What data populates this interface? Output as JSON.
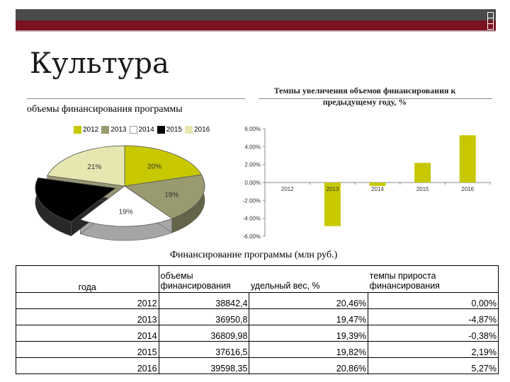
{
  "slide_title": "Культура",
  "charts": {
    "pie": {
      "title": "объемы финансирования программы"
    },
    "bar": {
      "title": "Темпы увеличения объемов финансирования к предыдущему году, %"
    }
  },
  "chart_data": [
    {
      "type": "pie",
      "title": "объемы финансирования программы",
      "legend_position": "top",
      "categories": [
        "2012",
        "2013",
        "2014",
        "2015",
        "2016"
      ],
      "values": [
        20.46,
        19.47,
        19.39,
        19.82,
        20.86
      ],
      "data_labels": [
        "20%",
        "19%",
        "19%",
        "",
        "21%"
      ],
      "colors": [
        "#c8c800",
        "#9a9a70",
        "#ffffff",
        "#000000",
        "#e6e6b0"
      ]
    },
    {
      "type": "bar",
      "title": "Темпы увеличения объемов финансирования к предыдущему году, %",
      "categories": [
        "2012",
        "2013",
        "2014",
        "2015",
        "2016"
      ],
      "values": [
        0.0,
        -4.87,
        -0.38,
        2.19,
        5.27
      ],
      "ylim": [
        -6,
        6
      ],
      "y_ticks": [
        "6.00%",
        "4.00%",
        "2.00%",
        "0.00%",
        "-2.00%",
        "-4.00%",
        "-6.00%"
      ],
      "grid": false,
      "color": "#c8c800"
    }
  ],
  "table": {
    "title": "Финансирование программы (млн руб.)",
    "headers": [
      "года",
      "объемы финансирования",
      "удельный вес, %",
      "темпы прироста финансирования"
    ],
    "rows": [
      [
        "2012",
        "38842,4",
        "20,46%",
        "0,00%"
      ],
      [
        "2013",
        "36950,8",
        "19,47%",
        "-4,87%"
      ],
      [
        "2014",
        "36809,98",
        "19,39%",
        "-0,38%"
      ],
      [
        "2015",
        "37616,5",
        "19,82%",
        "2,19%"
      ],
      [
        "2016",
        "39598,35",
        "20,86%",
        "5,27%"
      ]
    ]
  }
}
